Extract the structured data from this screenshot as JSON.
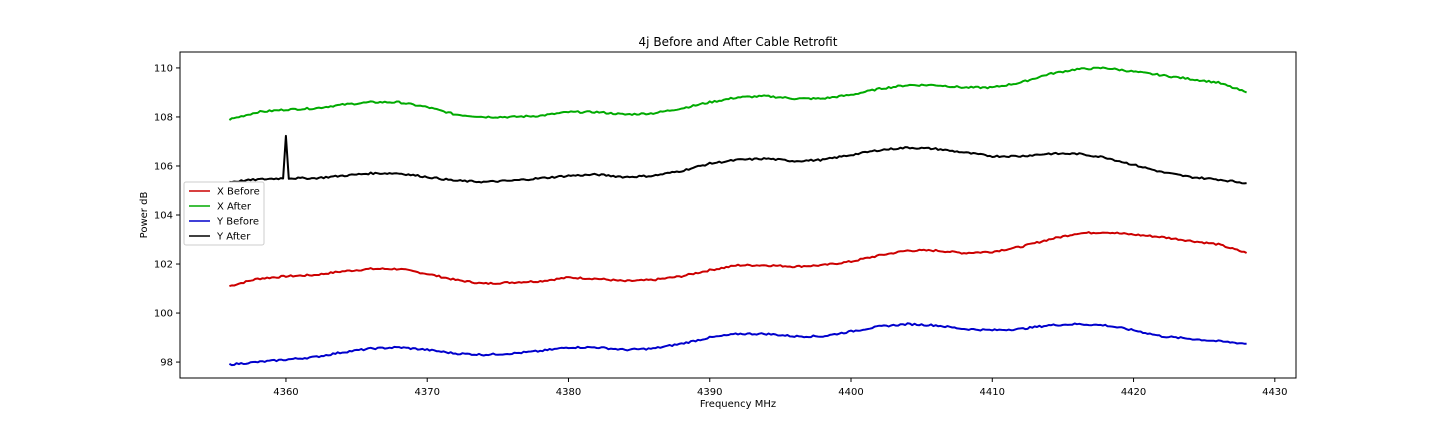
{
  "chart_data": {
    "type": "line",
    "title": "4j Before and After Cable Retrofit",
    "xlabel": "Frequency MHz",
    "ylabel": "Power dB",
    "xlim": [
      4352.5,
      4431.5
    ],
    "ylim": [
      97.35,
      110.65
    ],
    "xticks": [
      4360,
      4370,
      4380,
      4390,
      4400,
      4410,
      4420,
      4430
    ],
    "yticks": [
      98,
      100,
      102,
      104,
      106,
      108,
      110
    ],
    "grid": false,
    "legend_position": "center-left",
    "series": [
      {
        "name": "X Before",
        "color": "#cc0000",
        "x": [
          4356,
          4358,
          4360,
          4362,
          4364,
          4366,
          4368,
          4370,
          4372,
          4374,
          4376,
          4378,
          4380,
          4382,
          4384,
          4386,
          4388,
          4390,
          4392,
          4394,
          4396,
          4398,
          4400,
          4402,
          4404,
          4406,
          4408,
          4410,
          4412,
          4414,
          4416,
          4418,
          4420,
          4422,
          4424,
          4426,
          4428
        ],
        "y": [
          101.1,
          101.4,
          101.5,
          101.55,
          101.7,
          101.8,
          101.8,
          101.6,
          101.35,
          101.2,
          101.25,
          101.3,
          101.45,
          101.4,
          101.3,
          101.35,
          101.5,
          101.75,
          101.95,
          101.95,
          101.9,
          101.95,
          102.1,
          102.35,
          102.55,
          102.55,
          102.45,
          102.5,
          102.7,
          103.0,
          103.25,
          103.3,
          103.2,
          103.1,
          102.95,
          102.8,
          102.45
        ]
      },
      {
        "name": "X After",
        "color": "#00aa00",
        "x": [
          4356,
          4358,
          4360,
          4362,
          4364,
          4366,
          4368,
          4370,
          4372,
          4374,
          4376,
          4378,
          4380,
          4382,
          4384,
          4386,
          4388,
          4390,
          4392,
          4394,
          4396,
          4398,
          4400,
          4402,
          4404,
          4406,
          4408,
          4410,
          4412,
          4414,
          4416,
          4418,
          4420,
          4422,
          4424,
          4426,
          4428
        ],
        "y": [
          107.9,
          108.2,
          108.3,
          108.35,
          108.5,
          108.6,
          108.6,
          108.4,
          108.1,
          108.0,
          108.0,
          108.05,
          108.2,
          108.2,
          108.1,
          108.15,
          108.35,
          108.6,
          108.8,
          108.85,
          108.75,
          108.75,
          108.9,
          109.15,
          109.3,
          109.3,
          109.2,
          109.2,
          109.4,
          109.75,
          109.95,
          110.0,
          109.85,
          109.7,
          109.55,
          109.4,
          109.0
        ]
      },
      {
        "name": "Y Before",
        "color": "#0000cc",
        "x": [
          4356,
          4358,
          4360,
          4362,
          4364,
          4366,
          4368,
          4370,
          4372,
          4374,
          4376,
          4378,
          4380,
          4382,
          4384,
          4386,
          4388,
          4390,
          4392,
          4394,
          4396,
          4398,
          4400,
          4402,
          4404,
          4406,
          4408,
          4410,
          4412,
          4414,
          4416,
          4418,
          4420,
          4422,
          4424,
          4426,
          4428
        ],
        "y": [
          97.9,
          98.0,
          98.1,
          98.2,
          98.4,
          98.55,
          98.6,
          98.5,
          98.35,
          98.3,
          98.35,
          98.45,
          98.6,
          98.6,
          98.5,
          98.55,
          98.75,
          99.0,
          99.15,
          99.15,
          99.05,
          99.05,
          99.25,
          99.45,
          99.55,
          99.5,
          99.35,
          99.3,
          99.35,
          99.5,
          99.55,
          99.5,
          99.3,
          99.05,
          98.95,
          98.85,
          98.75
        ]
      },
      {
        "name": "Y After",
        "color": "#000000",
        "x": [
          4356,
          4358,
          4359.8,
          4360,
          4360.2,
          4362,
          4364,
          4366,
          4368,
          4370,
          4372,
          4374,
          4376,
          4378,
          4380,
          4382,
          4384,
          4386,
          4388,
          4390,
          4392,
          4394,
          4396,
          4398,
          4400,
          4402,
          4404,
          4406,
          4408,
          4410,
          4412,
          4414,
          4416,
          4418,
          4420,
          4422,
          4424,
          4426,
          4428
        ],
        "y": [
          105.35,
          105.45,
          105.5,
          107.25,
          105.5,
          105.5,
          105.6,
          105.7,
          105.7,
          105.55,
          105.4,
          105.35,
          105.4,
          105.5,
          105.6,
          105.65,
          105.55,
          105.6,
          105.8,
          106.1,
          106.25,
          106.3,
          106.2,
          106.25,
          106.45,
          106.65,
          106.75,
          106.7,
          106.55,
          106.4,
          106.4,
          106.5,
          106.5,
          106.35,
          106.05,
          105.75,
          105.55,
          105.45,
          105.3
        ]
      }
    ]
  }
}
